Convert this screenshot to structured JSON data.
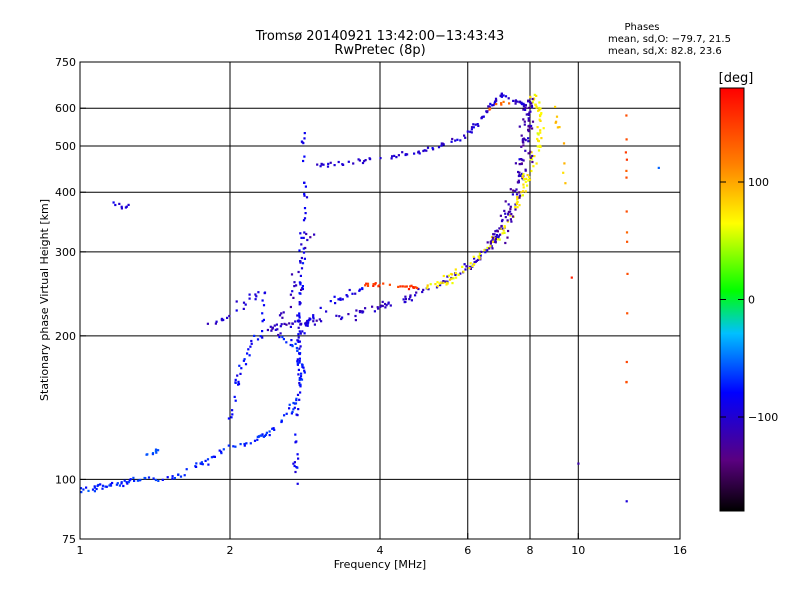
{
  "chart_data": {
    "type": "scatter",
    "title": "Tromsø 20140921 13:42:00−13:43:43",
    "subtitle": "RwPretec (8p)",
    "xlabel": "Frequency [MHz]",
    "ylabel": "Stationary phase Virtual Height [km]",
    "x_scale": "log2",
    "y_scale": "log",
    "xlim": [
      1,
      16
    ],
    "ylim": [
      75,
      750
    ],
    "x_ticks": [
      1,
      2,
      4,
      6,
      8,
      10,
      16
    ],
    "x_tick_labels": [
      "1",
      "2",
      "4",
      "6",
      "8",
      "10",
      "16"
    ],
    "y_ticks": [
      75,
      100,
      200,
      300,
      400,
      500,
      600,
      750
    ],
    "y_tick_labels": [
      "75",
      "100",
      "200",
      "300",
      "400",
      "500",
      "600",
      "750"
    ],
    "grid": true,
    "stats": {
      "heading": "Phases",
      "line_o": "mean, sd,O: −79.7, 21.5",
      "line_x": "mean, sd,X:  82.8, 23.6"
    },
    "colorbar": {
      "label": "[deg]",
      "range": [
        -180,
        180
      ],
      "ticks": [
        -100,
        0,
        100
      ],
      "tick_labels": [
        "−100",
        "0",
        "100"
      ]
    },
    "traces": [
      {
        "pts": [
          [
            2.3,
            205
          ],
          [
            2.5,
            210
          ],
          [
            2.7,
            212
          ],
          [
            3.0,
            215
          ],
          [
            3.5,
            222
          ],
          [
            4.0,
            230
          ],
          [
            4.5,
            240
          ],
          [
            5.0,
            250
          ],
          [
            5.5,
            262
          ],
          [
            6.0,
            278
          ],
          [
            6.5,
            300
          ],
          [
            7.0,
            335
          ],
          [
            7.3,
            370
          ],
          [
            7.6,
            420
          ],
          [
            7.8,
            480
          ],
          [
            7.9,
            550
          ],
          [
            7.95,
            620
          ]
        ],
        "phase": -105,
        "n": 170,
        "sx": 0.015,
        "sy": 0.02
      },
      {
        "pts": [
          [
            5.0,
            252
          ],
          [
            5.5,
            262
          ],
          [
            6.0,
            278
          ],
          [
            6.5,
            300
          ],
          [
            7.0,
            330
          ],
          [
            7.5,
            370
          ],
          [
            7.8,
            420
          ],
          [
            8.2,
            480
          ],
          [
            8.4,
            540
          ],
          [
            8.3,
            600
          ],
          [
            8.1,
            640
          ]
        ],
        "phase": 70,
        "n": 130,
        "sx": 0.018,
        "sy": 0.025
      },
      {
        "pts": [
          [
            6.5,
            300
          ],
          [
            7.0,
            330
          ],
          [
            7.3,
            370
          ],
          [
            7.6,
            420
          ],
          [
            7.8,
            470
          ],
          [
            7.85,
            520
          ],
          [
            7.9,
            570
          ],
          [
            7.95,
            620
          ]
        ],
        "phase": -120,
        "n": 80,
        "sx": 0.03,
        "sy": 0.05
      },
      {
        "pts": [
          [
            3.0,
            455
          ],
          [
            3.5,
            462
          ],
          [
            4.0,
            470
          ],
          [
            4.5,
            480
          ],
          [
            5.0,
            492
          ],
          [
            5.5,
            508
          ],
          [
            6.0,
            530
          ],
          [
            6.3,
            560
          ],
          [
            6.6,
            600
          ],
          [
            7.0,
            640
          ],
          [
            7.3,
            630
          ],
          [
            7.7,
            615
          ],
          [
            8.0,
            600
          ]
        ],
        "phase": -100,
        "n": 110,
        "sx": 0.012,
        "sy": 0.012
      },
      {
        "pts": [
          [
            3.7,
            258
          ],
          [
            4.0,
            256
          ],
          [
            4.5,
            254
          ],
          [
            4.8,
            252
          ]
        ],
        "phase": 155,
        "n": 25,
        "sx": 0.01,
        "sy": 0.01
      },
      {
        "pts": [
          [
            6.6,
            600
          ],
          [
            6.9,
            610
          ],
          [
            7.2,
            620
          ]
        ],
        "phase": 130,
        "n": 8,
        "sx": 0.02,
        "sy": 0.01
      },
      {
        "pts": [
          [
            2.7,
            95
          ],
          [
            2.72,
            120
          ],
          [
            2.74,
            160
          ],
          [
            2.75,
            200
          ],
          [
            2.77,
            250
          ],
          [
            2.8,
            300
          ],
          [
            2.82,
            400
          ],
          [
            2.8,
            530
          ]
        ],
        "phase": -85,
        "n": 90,
        "sx": 0.012,
        "sy": 0.03
      },
      {
        "pts": [
          [
            2.8,
            195
          ],
          [
            2.85,
            210
          ],
          [
            3.0,
            225
          ],
          [
            3.3,
            240
          ],
          [
            3.7,
            250
          ]
        ],
        "phase": -90,
        "n": 30,
        "sx": 0.015,
        "sy": 0.02
      },
      {
        "pts": [
          [
            2.5,
            200
          ],
          [
            2.7,
            190
          ],
          [
            2.8,
            170
          ],
          [
            2.75,
            150
          ],
          [
            2.6,
            135
          ],
          [
            2.4,
            125
          ],
          [
            2.2,
            120
          ],
          [
            2.0,
            117
          ],
          [
            1.8,
            110
          ],
          [
            1.7,
            106
          ],
          [
            1.6,
            102
          ],
          [
            1.5,
            100
          ],
          [
            1.3,
            100
          ],
          [
            1.2,
            98
          ],
          [
            1.1,
            97
          ],
          [
            1.0,
            95
          ]
        ],
        "phase": -70,
        "n": 140,
        "sx": 0.015,
        "sy": 0.015
      },
      {
        "pts": [
          [
            2.0,
            130
          ],
          [
            2.05,
            150
          ],
          [
            2.1,
            170
          ],
          [
            2.2,
            190
          ],
          [
            2.3,
            205
          ],
          [
            2.35,
            230
          ]
        ],
        "phase": -80,
        "n": 35,
        "sx": 0.015,
        "sy": 0.03
      },
      {
        "pts": [
          [
            2.5,
            200
          ],
          [
            2.6,
            230
          ],
          [
            2.7,
            260
          ],
          [
            2.75,
            290
          ],
          [
            2.85,
            320
          ],
          [
            3.0,
            330
          ]
        ],
        "phase": -110,
        "n": 25,
        "sx": 0.03,
        "sy": 0.03
      },
      {
        "pts": [
          [
            1.35,
            113
          ],
          [
            1.45,
            115
          ]
        ],
        "phase": -60,
        "n": 8,
        "sx": 0.01,
        "sy": 0.01
      },
      {
        "pts": [
          [
            1.15,
            378
          ],
          [
            1.22,
            372
          ],
          [
            1.25,
            380
          ]
        ],
        "phase": -95,
        "n": 8,
        "sx": 0.02,
        "sy": 0.02
      },
      {
        "pts": [
          [
            2.0,
            225
          ],
          [
            2.2,
            240
          ],
          [
            2.4,
            246
          ]
        ],
        "phase": -95,
        "n": 14,
        "sx": 0.03,
        "sy": 0.03
      },
      {
        "pts": [
          [
            1.8,
            210
          ],
          [
            1.9,
            215
          ],
          [
            2.0,
            218
          ]
        ],
        "phase": -100,
        "n": 8,
        "sx": 0.015,
        "sy": 0.01
      },
      {
        "pts": [
          [
            9.0,
            600
          ],
          [
            9.2,
            550
          ],
          [
            9.3,
            450
          ],
          [
            9.4,
            380
          ]
        ],
        "phase": 90,
        "n": 10,
        "sx": 0.02,
        "sy": 0.05
      },
      {
        "pts": [
          [
            12.5,
            145
          ],
          [
            12.5,
            200
          ],
          [
            12.5,
            300
          ],
          [
            12.5,
            450
          ],
          [
            12.5,
            550
          ]
        ],
        "phase": 140,
        "n": 14,
        "sx": 0.003,
        "sy": 0.15
      },
      {
        "pts": [
          [
            12.5,
            90
          ]
        ],
        "phase": -90,
        "n": 1,
        "sx": 0.0,
        "sy": 0.0
      },
      {
        "pts": [
          [
            14.5,
            450
          ]
        ],
        "phase": -60,
        "n": 1,
        "sx": 0.0,
        "sy": 0.0
      },
      {
        "pts": [
          [
            10.0,
            108
          ]
        ],
        "phase": -120,
        "n": 1,
        "sx": 0.0,
        "sy": 0.0
      },
      {
        "pts": [
          [
            9.7,
            265
          ]
        ],
        "phase": 150,
        "n": 1,
        "sx": 0.0,
        "sy": 0.0
      }
    ]
  }
}
